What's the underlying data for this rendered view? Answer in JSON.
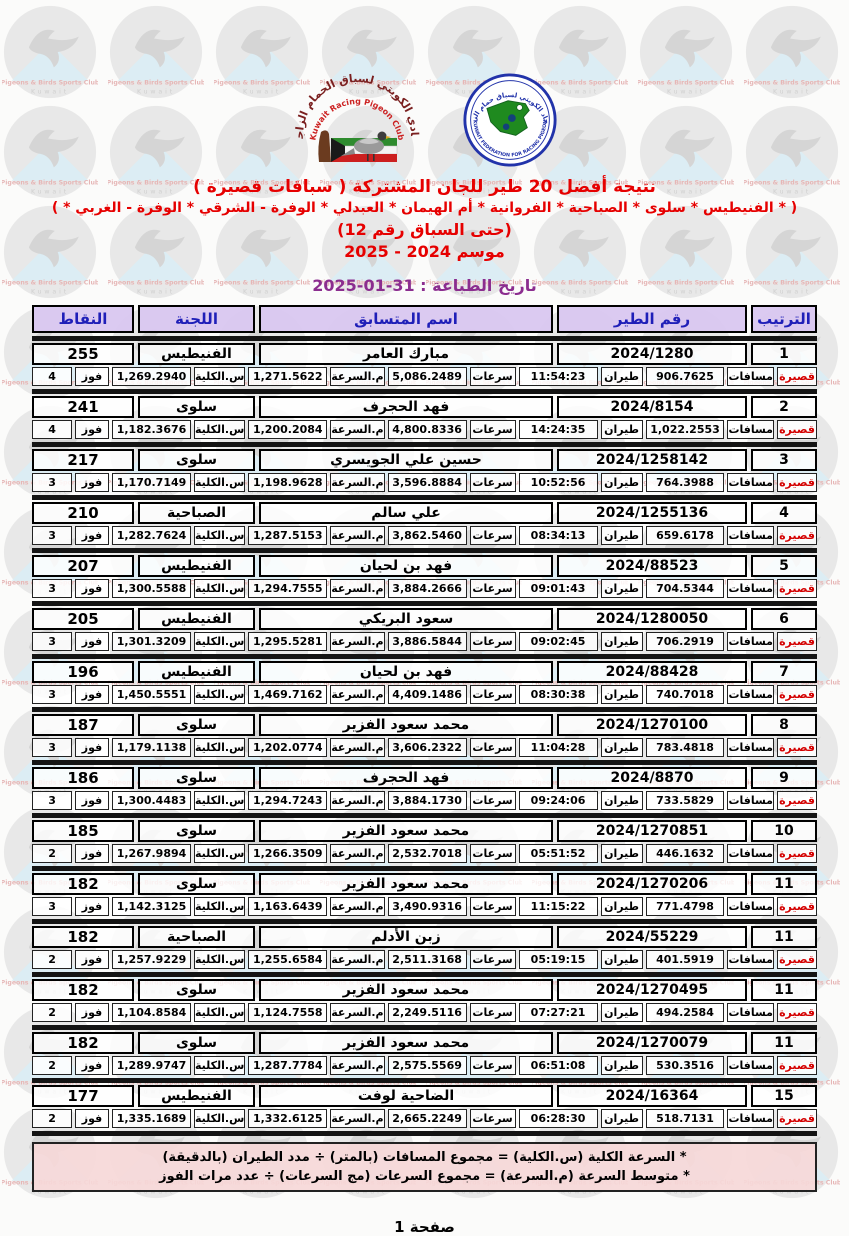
{
  "header": {
    "club_logo": {
      "arabic_name": "النادي الكويتي لسباق الحمام الزاجل",
      "english_name": "Kuwait Racing Pigeon Club"
    },
    "federation_logo": {
      "arabic_name": "الاتحاد الكويتي لسباق حمام الزاجل",
      "english_name": "KUWAIT FEDERATION FOR RACING PIGEON"
    }
  },
  "title": {
    "line1": "نتيجة أفضل 20 طير للجان المشتركة ( سباقات قصيرة )",
    "line2": "( * الفنيطيس * سلوى * الصباحية * الفروانية * أم الهيمان * العبدلي * الوفرة - الشرقي * الوفرة - الغربي * )",
    "line3": "(حتى السباق رقم 12)",
    "line4": "موسم 2024 - 2025",
    "print_date": "تاريخ الطباعة : 31-01-2025"
  },
  "table": {
    "columns": {
      "rank": "الترتيب",
      "bird_no": "رقم الطير",
      "name": "اسم المتسابق",
      "committee": "اللجنة",
      "points": "النقاط"
    },
    "detail_labels": {
      "category": "قصيرة",
      "distances": "مسافات",
      "flight": "طيران",
      "speeds": "سرعات",
      "avg_speed": "م.السرعة",
      "total_speed": "س.الكلية",
      "wins": "فوز"
    },
    "rows": [
      {
        "rank": "1",
        "bird_no": "2024/1280",
        "name": "مبارك العامر",
        "committee": "الفنيطيس",
        "points": "255",
        "distance": "906.7625",
        "flight_time": "11:54:23",
        "speeds": "5,086.2489",
        "avg_speed": "1,271.5622",
        "total_speed": "1,269.2940",
        "wins": "4"
      },
      {
        "rank": "2",
        "bird_no": "2024/8154",
        "name": "فهد الحجرف",
        "committee": "سلوى",
        "points": "241",
        "distance": "1,022.2553",
        "flight_time": "14:24:35",
        "speeds": "4,800.8336",
        "avg_speed": "1,200.2084",
        "total_speed": "1,182.3676",
        "wins": "4"
      },
      {
        "rank": "3",
        "bird_no": "2024/1258142",
        "name": "حسين علي الجويسري",
        "committee": "سلوى",
        "points": "217",
        "distance": "764.3988",
        "flight_time": "10:52:56",
        "speeds": "3,596.8884",
        "avg_speed": "1,198.9628",
        "total_speed": "1,170.7149",
        "wins": "3"
      },
      {
        "rank": "4",
        "bird_no": "2024/1255136",
        "name": "علي سالم",
        "committee": "الصباحية",
        "points": "210",
        "distance": "659.6178",
        "flight_time": "08:34:13",
        "speeds": "3,862.5460",
        "avg_speed": "1,287.5153",
        "total_speed": "1,282.7624",
        "wins": "3"
      },
      {
        "rank": "5",
        "bird_no": "2024/88523",
        "name": "فهد بن لحيان",
        "committee": "الفنيطيس",
        "points": "207",
        "distance": "704.5344",
        "flight_time": "09:01:43",
        "speeds": "3,884.2666",
        "avg_speed": "1,294.7555",
        "total_speed": "1,300.5588",
        "wins": "3"
      },
      {
        "rank": "6",
        "bird_no": "2024/1280050",
        "name": "سعود البريكي",
        "committee": "الفنيطيس",
        "points": "205",
        "distance": "706.2919",
        "flight_time": "09:02:45",
        "speeds": "3,886.5844",
        "avg_speed": "1,295.5281",
        "total_speed": "1,301.3209",
        "wins": "3"
      },
      {
        "rank": "7",
        "bird_no": "2024/88428",
        "name": "فهد بن لحيان",
        "committee": "الفنيطيس",
        "points": "196",
        "distance": "740.7018",
        "flight_time": "08:30:38",
        "speeds": "4,409.1486",
        "avg_speed": "1,469.7162",
        "total_speed": "1,450.5551",
        "wins": "3"
      },
      {
        "rank": "8",
        "bird_no": "2024/1270100",
        "name": "محمد سعود الفزير",
        "committee": "سلوى",
        "points": "187",
        "distance": "783.4818",
        "flight_time": "11:04:28",
        "speeds": "3,606.2322",
        "avg_speed": "1,202.0774",
        "total_speed": "1,179.1138",
        "wins": "3"
      },
      {
        "rank": "9",
        "bird_no": "2024/8870",
        "name": "فهد الحجرف",
        "committee": "سلوى",
        "points": "186",
        "distance": "733.5829",
        "flight_time": "09:24:06",
        "speeds": "3,884.1730",
        "avg_speed": "1,294.7243",
        "total_speed": "1,300.4483",
        "wins": "3"
      },
      {
        "rank": "10",
        "bird_no": "2024/1270851",
        "name": "محمد سعود الفزير",
        "committee": "سلوى",
        "points": "185",
        "distance": "446.1632",
        "flight_time": "05:51:52",
        "speeds": "2,532.7018",
        "avg_speed": "1,266.3509",
        "total_speed": "1,267.9894",
        "wins": "2"
      },
      {
        "rank": "11",
        "bird_no": "2024/1270206",
        "name": "محمد سعود الفزير",
        "committee": "سلوى",
        "points": "182",
        "distance": "771.4798",
        "flight_time": "11:15:22",
        "speeds": "3,490.9316",
        "avg_speed": "1,163.6439",
        "total_speed": "1,142.3125",
        "wins": "3"
      },
      {
        "rank": "11",
        "bird_no": "2024/55229",
        "name": "زبن الأدلم",
        "committee": "الصباحية",
        "points": "182",
        "distance": "401.5919",
        "flight_time": "05:19:15",
        "speeds": "2,511.3168",
        "avg_speed": "1,255.6584",
        "total_speed": "1,257.9229",
        "wins": "2"
      },
      {
        "rank": "11",
        "bird_no": "2024/1270495",
        "name": "محمد سعود الفزير",
        "committee": "سلوى",
        "points": "182",
        "distance": "494.2584",
        "flight_time": "07:27:21",
        "speeds": "2,249.5116",
        "avg_speed": "1,124.7558",
        "total_speed": "1,104.8584",
        "wins": "2"
      },
      {
        "rank": "11",
        "bird_no": "2024/1270079",
        "name": "محمد سعود الفزير",
        "committee": "سلوى",
        "points": "182",
        "distance": "530.3516",
        "flight_time": "06:51:08",
        "speeds": "2,575.5569",
        "avg_speed": "1,287.7784",
        "total_speed": "1,289.9747",
        "wins": "2"
      },
      {
        "rank": "15",
        "bird_no": "2024/16364",
        "name": "الضاحية لوفت",
        "committee": "الفنيطيس",
        "points": "177",
        "distance": "518.7131",
        "flight_time": "06:28:30",
        "speeds": "2,665.2249",
        "avg_speed": "1,332.6125",
        "total_speed": "1,335.1689",
        "wins": "2"
      }
    ]
  },
  "notes": {
    "line1": "* السرعة الكلية (س.الكلية) = مجموع المسافات (بالمتر) ÷ مدد الطيران (بالدقيقة)",
    "line2": "* متوسط السرعة (م.السرعة) = مجموع السرعات (مج السرعات) ÷ عدد مرات الفوز"
  },
  "footer": {
    "page": "صفحة 1"
  },
  "watermark": {
    "line1": "Pigeons & Birds Sports Club",
    "line2": "Kuwait"
  },
  "colors": {
    "title_red": "#e60000",
    "date_purple": "#8b2d8f",
    "header_bg": "#d8c6f0",
    "header_text": "#1f1fb8",
    "category_red": "#d40000",
    "notes_bg": "#f6d8d8"
  }
}
